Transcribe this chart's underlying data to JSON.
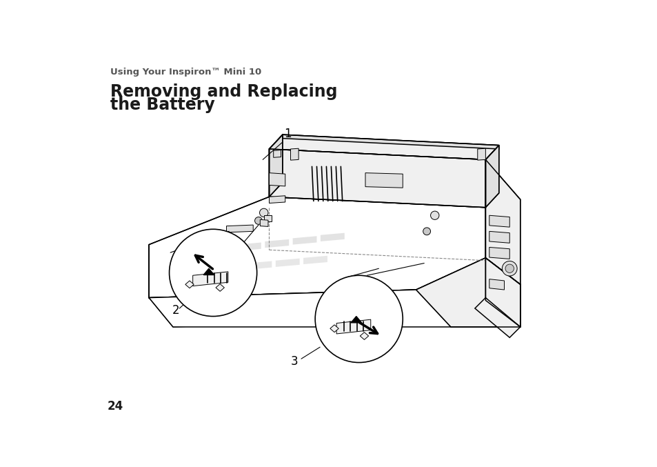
{
  "subtitle": "Using Your Inspiron™ Mini 10",
  "title_line1": "Removing and Replacing",
  "title_line2": "the Battery",
  "label_1": "1",
  "label_2": "2",
  "label_3": "3",
  "page_number": "24",
  "bg_color": "#ffffff",
  "text_color": "#1a1a1a",
  "subtitle_color": "#555555",
  "subtitle_fontsize": 9.5,
  "title_fontsize": 17,
  "page_num_fontsize": 12,
  "lw_main": 1.1,
  "lw_thin": 0.7,
  "face_white": "#ffffff",
  "face_light": "#f0f0f0",
  "face_mid": "#e0e0e0",
  "face_dark": "#c8c8c8",
  "face_vdark": "#b0b0b0"
}
